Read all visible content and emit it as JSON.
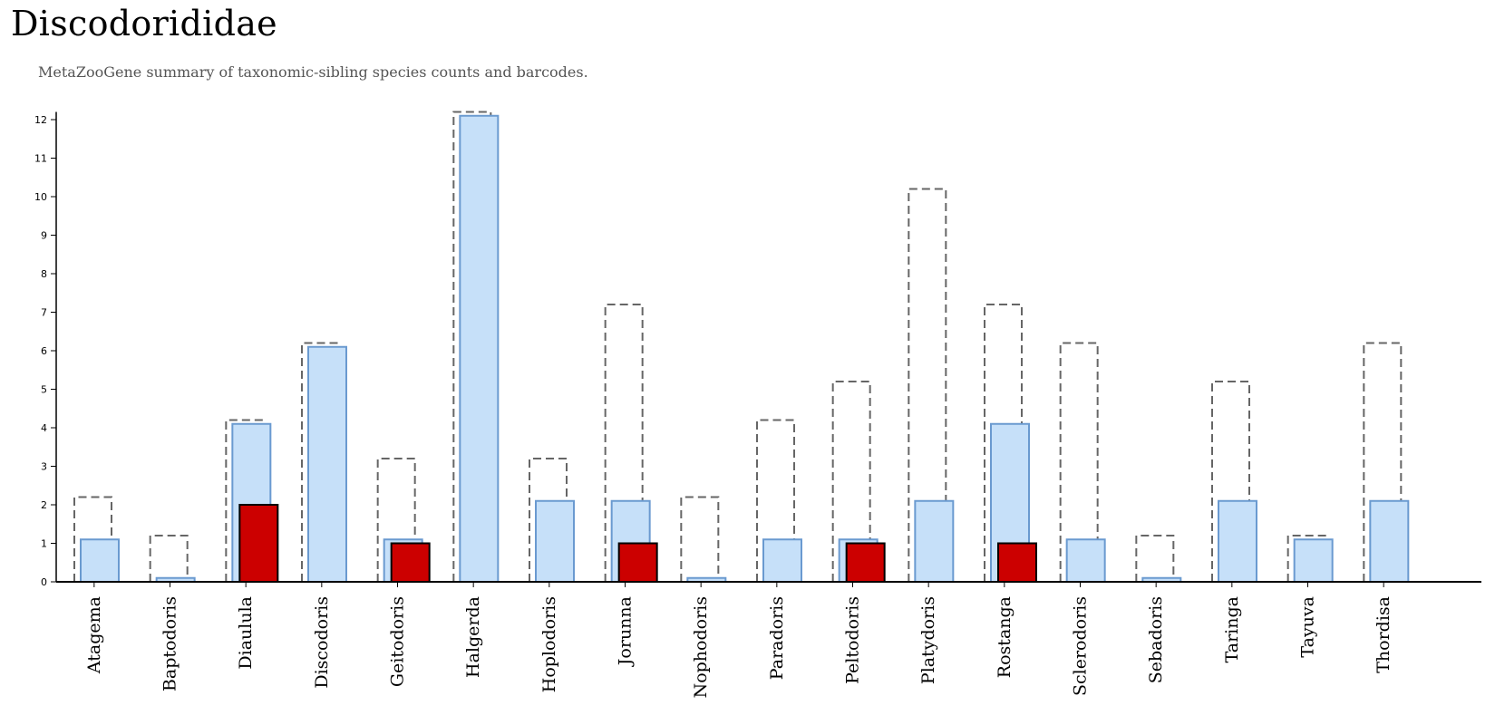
{
  "title": "Discodorididae",
  "subtitle": "MetaZooGene summary of taxonomic-sibling species counts and barcodes.",
  "colors": {
    "species_fill": "#c6e0f9",
    "species_stroke": "#6a9ad0",
    "barcode_fill": "#cc0000",
    "barcode_stroke": "#000000",
    "expected_stroke": "#666666"
  },
  "chart_data": {
    "type": "bar",
    "title": "",
    "xlabel": "",
    "ylabel": "",
    "ylim": [
      0,
      12.2
    ],
    "yticks": [
      0,
      1,
      2,
      3,
      4,
      5,
      6,
      7,
      8,
      9,
      10,
      11,
      12
    ],
    "categories": [
      "Atagema",
      "Baptodoris",
      "Diaulula",
      "Discodoris",
      "Geitodoris",
      "Halgerda",
      "Hoplodoris",
      "Jorunna",
      "Nophodoris",
      "Paradoris",
      "Peltodoris",
      "Platydoris",
      "Rostanga",
      "Sclerodoris",
      "Sebadoris",
      "Taringa",
      "Tayuva",
      "Thordisa"
    ],
    "series": [
      {
        "values": [
          2,
          1,
          4,
          6,
          3,
          12,
          3,
          7,
          2,
          4,
          5,
          10,
          7,
          6,
          1,
          5,
          1,
          6
        ]
      },
      {
        "values": [
          1,
          0,
          4,
          6,
          1,
          12,
          2,
          2,
          0,
          1,
          1,
          2,
          4,
          1,
          0,
          2,
          1,
          2
        ]
      },
      {
        "values": [
          0,
          0,
          2,
          0,
          1,
          0,
          0,
          1,
          0,
          0,
          1,
          0,
          1,
          0,
          0,
          0,
          0,
          0
        ]
      }
    ],
    "grid": false,
    "legend": "none"
  }
}
